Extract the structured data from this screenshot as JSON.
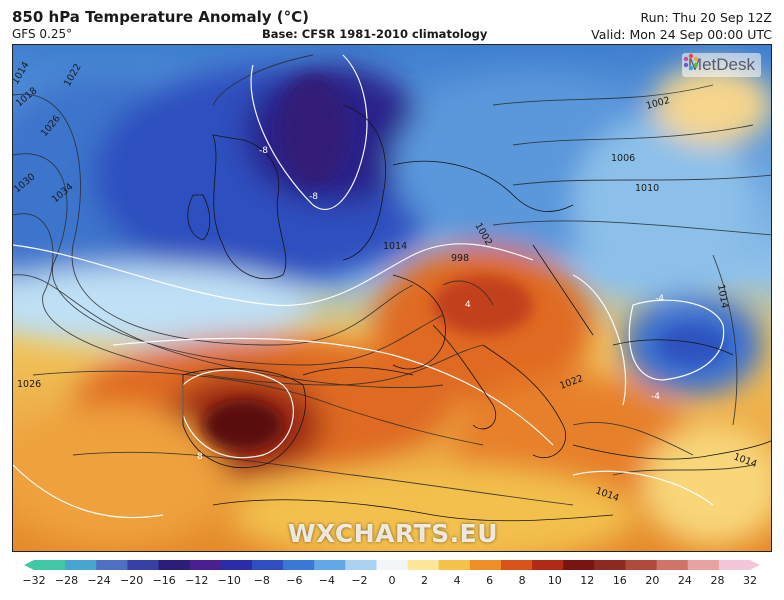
{
  "header": {
    "title": "850 hPa Temperature Anomaly (°C)",
    "model": "GFS 0.25°",
    "base": "Base: CFSR 1981-2010 climatology",
    "run": "Run: Thu 20 Sep 12Z",
    "valid": "Valid: Mon 24 Sep 00:00 UTC"
  },
  "branding": {
    "logo_text": "MetDesk",
    "watermark": "WXCHARTS.EU"
  },
  "map": {
    "isobar_labels": [
      "1014",
      "1018",
      "1022",
      "1026",
      "1030",
      "1034",
      "1002",
      "1006",
      "1010",
      "1014",
      "998",
      "1002",
      "1022",
      "1026",
      "1014",
      "1014",
      "1014"
    ],
    "anomaly_labels": [
      "-8",
      "-8",
      "8",
      "4",
      "-4",
      "-4"
    ]
  },
  "legend": {
    "ticks": [
      "−32",
      "−28",
      "−24",
      "−20",
      "−16",
      "−12",
      "−10",
      "−8",
      "−6",
      "−4",
      "−2",
      "0",
      "2",
      "4",
      "6",
      "8",
      "10",
      "12",
      "16",
      "20",
      "24",
      "28",
      "32"
    ],
    "colors": [
      "#3fc7a6",
      "#46a6d1",
      "#4d6fc4",
      "#3840a6",
      "#2b1d78",
      "#4a1f8f",
      "#2a2ca8",
      "#2e4fbf",
      "#3a78d6",
      "#62a7e6",
      "#aad2f2",
      "#f3f6f8",
      "#ffe79a",
      "#f7c24a",
      "#ef8f28",
      "#d9541b",
      "#b02a14",
      "#7a1410",
      "#8c2a22",
      "#b04a3c",
      "#cf7566",
      "#e8a3a0",
      "#f4c7d8"
    ]
  }
}
